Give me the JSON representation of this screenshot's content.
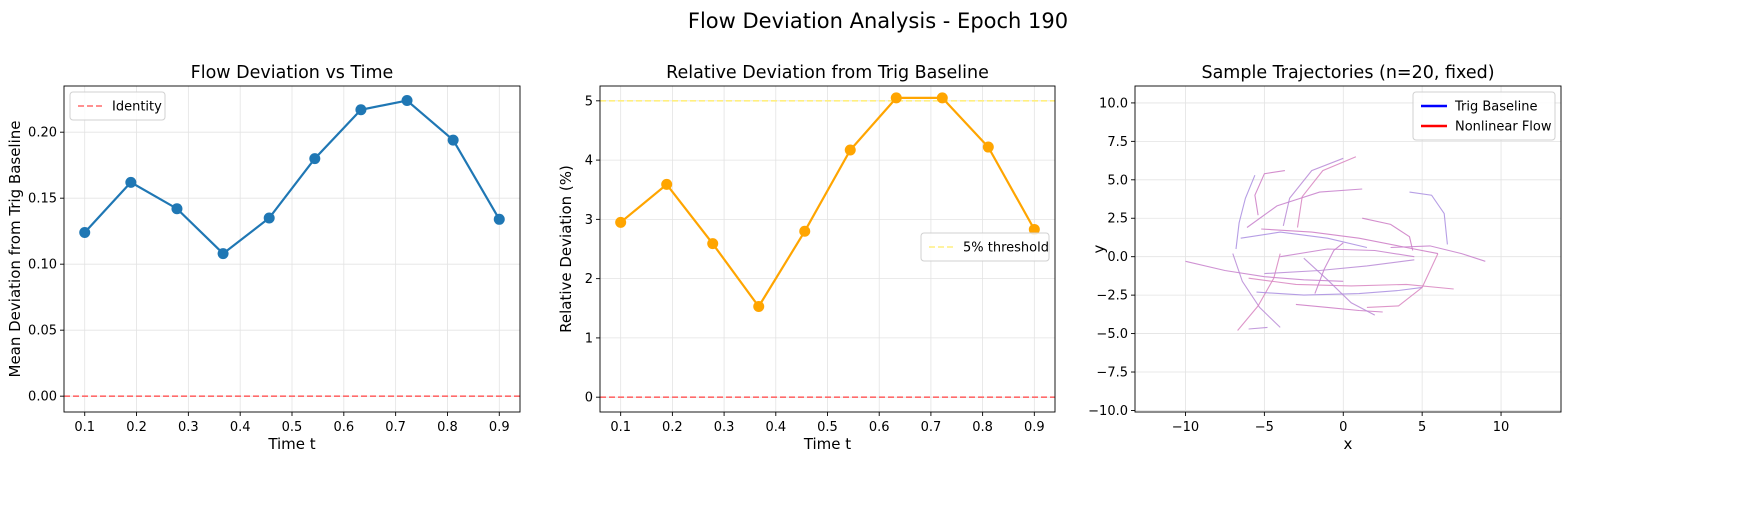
{
  "figure": {
    "title": "Flow Deviation Analysis - Epoch 190"
  },
  "chart_data": [
    {
      "type": "line",
      "title": "Flow Deviation vs Time",
      "xlabel": "Time t",
      "ylabel": "Mean Deviation from Trig Baseline",
      "xlim": [
        0.06,
        0.94
      ],
      "ylim": [
        -0.012,
        0.235
      ],
      "xticks": [
        0.1,
        0.2,
        0.3,
        0.4,
        0.5,
        0.6,
        0.7,
        0.8,
        0.9
      ],
      "xtick_labels": [
        "0.1",
        "0.2",
        "0.3",
        "0.4",
        "0.5",
        "0.6",
        "0.7",
        "0.8",
        "0.9"
      ],
      "yticks": [
        0.0,
        0.05,
        0.1,
        0.15,
        0.2
      ],
      "ytick_labels": [
        "0.00",
        "0.05",
        "0.10",
        "0.15",
        "0.20"
      ],
      "grid": true,
      "legend": {
        "placement": "top-left",
        "entries": [
          {
            "label": "Identity",
            "color": "#ff6b6b",
            "style": "dashed"
          }
        ]
      },
      "series": [
        {
          "color": "#1f77b4",
          "marker": "circle",
          "x": [
            0.1,
            0.189,
            0.278,
            0.367,
            0.456,
            0.544,
            0.633,
            0.722,
            0.811,
            0.9
          ],
          "y": [
            0.124,
            0.162,
            0.142,
            0.108,
            0.135,
            0.18,
            0.217,
            0.224,
            0.194,
            0.134
          ]
        }
      ],
      "hlines": [
        {
          "y": 0.0,
          "color": "#ff6b6b",
          "style": "dashed"
        }
      ]
    },
    {
      "type": "line",
      "title": "Relative Deviation from Trig Baseline",
      "xlabel": "Time t",
      "ylabel": "Relative Deviation (%)",
      "xlim": [
        0.06,
        0.94
      ],
      "ylim": [
        -0.25,
        5.25
      ],
      "xticks": [
        0.1,
        0.2,
        0.3,
        0.4,
        0.5,
        0.6,
        0.7,
        0.8,
        0.9
      ],
      "xtick_labels": [
        "0.1",
        "0.2",
        "0.3",
        "0.4",
        "0.5",
        "0.6",
        "0.7",
        "0.8",
        "0.9"
      ],
      "yticks": [
        0,
        1,
        2,
        3,
        4,
        5
      ],
      "ytick_labels": [
        "0",
        "1",
        "2",
        "3",
        "4",
        "5"
      ],
      "grid": true,
      "legend": {
        "placement": "center-right",
        "entries": [
          {
            "label": "5% threshold",
            "color": "#ffef80",
            "style": "dashed"
          }
        ]
      },
      "series": [
        {
          "color": "#ffa500",
          "marker": "circle",
          "x": [
            0.1,
            0.189,
            0.278,
            0.367,
            0.456,
            0.544,
            0.633,
            0.722,
            0.811,
            0.9
          ],
          "y": [
            2.95,
            3.59,
            2.59,
            1.53,
            2.8,
            4.17,
            5.05,
            5.05,
            4.22,
            2.83
          ]
        }
      ],
      "hlines": [
        {
          "y": 5.0,
          "color": "#ffef80",
          "style": "dashed"
        },
        {
          "y": 0.0,
          "color": "#ff6b6b",
          "style": "dashed"
        }
      ]
    },
    {
      "type": "line",
      "title": "Sample Trajectories (n=20, fixed)",
      "xlabel": "x",
      "ylabel": "y",
      "xlim": [
        -13.2,
        13.8
      ],
      "ylim": [
        -10.1,
        11.1
      ],
      "xticks": [
        -10,
        -5,
        0,
        5,
        10
      ],
      "xtick_labels": [
        "−10",
        "−5",
        "0",
        "5",
        "10"
      ],
      "yticks": [
        -10,
        -7.5,
        -5,
        -2.5,
        0,
        2.5,
        5,
        7.5,
        10
      ],
      "ytick_labels": [
        "−10.0",
        "−7.5",
        "−5.0",
        "−2.5",
        "0.0",
        "2.5",
        "5.0",
        "7.5",
        "10.0"
      ],
      "grid": true,
      "legend": {
        "placement": "top-right",
        "entries": [
          {
            "label": "Trig Baseline",
            "color": "#0000ff",
            "style": "solid"
          },
          {
            "label": "Nonlinear Flow",
            "color": "#ff0000",
            "style": "solid"
          }
        ]
      },
      "trajectories": [
        [
          [
            -10.0,
            -0.3
          ],
          [
            -7.5,
            -0.9
          ],
          [
            -5.0,
            -1.3
          ],
          [
            -2.5,
            -1.5
          ],
          [
            0.0,
            -1.6
          ]
        ],
        [
          [
            -7.0,
            0.2
          ],
          [
            -6.4,
            -1.6
          ],
          [
            -5.3,
            -3.3
          ],
          [
            -4.0,
            -4.6
          ]
        ],
        [
          [
            -6.7,
            -4.8
          ],
          [
            -5.4,
            -3.2
          ],
          [
            -4.4,
            -1.4
          ],
          [
            -4.0,
            0.2
          ]
        ],
        [
          [
            -5.6,
            5.3
          ],
          [
            -6.2,
            3.8
          ],
          [
            -6.6,
            2.2
          ],
          [
            -6.8,
            0.5
          ]
        ],
        [
          [
            -3.7,
            5.6
          ],
          [
            -5.0,
            5.4
          ],
          [
            -5.6,
            4.0
          ],
          [
            -5.4,
            2.7
          ]
        ],
        [
          [
            -6.1,
            1.9
          ],
          [
            -4.2,
            3.3
          ],
          [
            -1.5,
            4.2
          ],
          [
            1.2,
            4.4
          ]
        ],
        [
          [
            0.0,
            6.4
          ],
          [
            -2.0,
            5.6
          ],
          [
            -3.4,
            3.8
          ],
          [
            -3.8,
            2.0
          ]
        ],
        [
          [
            0.8,
            6.5
          ],
          [
            -1.3,
            5.6
          ],
          [
            -2.6,
            3.9
          ],
          [
            -2.9,
            1.9
          ]
        ],
        [
          [
            -6.5,
            1.2
          ],
          [
            -4.0,
            1.6
          ],
          [
            -1.0,
            1.2
          ],
          [
            1.5,
            0.6
          ]
        ],
        [
          [
            -5.2,
            1.8
          ],
          [
            -2.0,
            1.6
          ],
          [
            1.0,
            1.2
          ],
          [
            4.0,
            0.6
          ],
          [
            6.0,
            0.2
          ]
        ],
        [
          [
            -4.0,
            0.0
          ],
          [
            -1.0,
            0.5
          ],
          [
            2.0,
            0.4
          ],
          [
            4.5,
            0.0
          ]
        ],
        [
          [
            -5.0,
            -1.1
          ],
          [
            -1.5,
            -0.9
          ],
          [
            1.5,
            -0.6
          ],
          [
            4.5,
            -0.2
          ]
        ],
        [
          [
            -6.0,
            -1.4
          ],
          [
            -3.0,
            -1.8
          ],
          [
            0.5,
            -1.9
          ],
          [
            4.0,
            -1.8
          ],
          [
            7.0,
            -2.1
          ]
        ],
        [
          [
            -5.5,
            -2.3
          ],
          [
            -2.5,
            -2.5
          ],
          [
            1.0,
            -2.4
          ],
          [
            3.5,
            -2.2
          ],
          [
            5.0,
            -2.0
          ]
        ],
        [
          [
            -3.0,
            -3.1
          ],
          [
            -1.0,
            -3.3
          ],
          [
            1.0,
            -3.5
          ],
          [
            2.5,
            -3.6
          ]
        ],
        [
          [
            -1.8,
            -2.4
          ],
          [
            -1.2,
            -0.8
          ],
          [
            -0.6,
            0.4
          ],
          [
            0.0,
            0.9
          ]
        ],
        [
          [
            -2.5,
            -0.1
          ],
          [
            -1.0,
            -1.5
          ],
          [
            0.5,
            -3.0
          ],
          [
            2.0,
            -3.8
          ]
        ],
        [
          [
            1.5,
            -3.3
          ],
          [
            3.5,
            -3.2
          ],
          [
            5.0,
            -2.0
          ],
          [
            6.0,
            0.2
          ]
        ],
        [
          [
            4.2,
            4.2
          ],
          [
            5.6,
            4.0
          ],
          [
            6.4,
            2.8
          ],
          [
            6.6,
            0.8
          ]
        ],
        [
          [
            1.2,
            2.5
          ],
          [
            3.0,
            2.1
          ],
          [
            4.2,
            1.3
          ],
          [
            4.4,
            0.4
          ]
        ],
        [
          [
            3.0,
            0.6
          ],
          [
            5.5,
            0.7
          ],
          [
            7.5,
            0.2
          ],
          [
            9.0,
            -0.3
          ]
        ],
        [
          [
            -6.0,
            -4.7
          ],
          [
            -4.8,
            -4.6
          ]
        ]
      ]
    }
  ]
}
